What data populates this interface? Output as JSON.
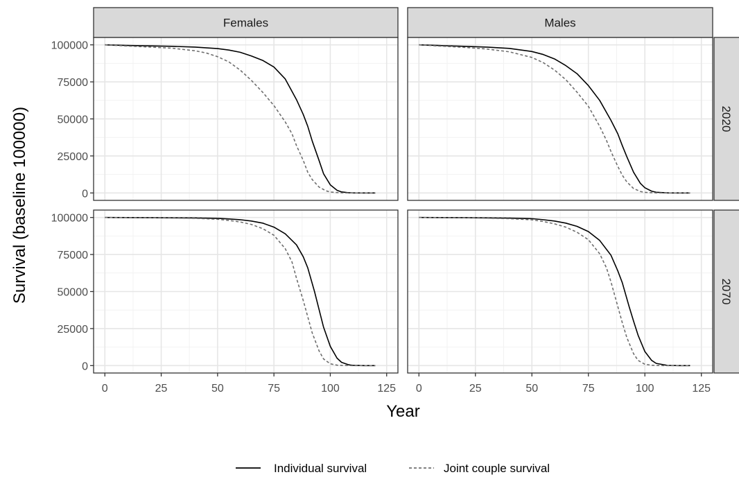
{
  "chart_data": {
    "type": "line",
    "facets": {
      "columns": [
        "Females",
        "Males"
      ],
      "rows": [
        "2020",
        "2070"
      ]
    },
    "xlabel": "Year",
    "ylabel": "Survival (baseline 100000)",
    "xlim": [
      0,
      125
    ],
    "ylim": [
      0,
      100000
    ],
    "x_ticks": [
      0,
      25,
      50,
      75,
      100,
      125
    ],
    "y_ticks": [
      0,
      25000,
      50000,
      75000,
      100000
    ],
    "y_tick_labels": [
      "0",
      "25000",
      "50000",
      "75000",
      "100000"
    ],
    "grid": true,
    "legend_position": "bottom",
    "series_styles": {
      "Individual survival": {
        "color": "#000000",
        "dash": "solid"
      },
      "Joint couple survival": {
        "color": "#6e6e6e",
        "dash": "dashed"
      }
    },
    "panels": [
      {
        "column": "Females",
        "row": "2020",
        "series": [
          {
            "name": "Individual survival",
            "x": [
              0,
              10,
              20,
              30,
              40,
              50,
              55,
              60,
              65,
              70,
              75,
              80,
              85,
              88,
              90,
              92,
              95,
              97,
              100,
              103,
              105,
              108,
              110,
              115,
              120
            ],
            "y": [
              100000,
              99600,
              99300,
              99000,
              98500,
              97500,
              96500,
              95000,
              92500,
              89500,
              85000,
              77000,
              63000,
              53000,
              45000,
              35000,
              22000,
              13000,
              5500,
              1800,
              700,
              200,
              80,
              10,
              0
            ]
          },
          {
            "name": "Joint couple survival",
            "x": [
              0,
              10,
              20,
              30,
              40,
              45,
              50,
              55,
              60,
              65,
              70,
              75,
              80,
              83,
              85,
              88,
              90,
              92,
              95,
              98,
              100,
              105,
              110,
              120
            ],
            "y": [
              100000,
              99200,
              98500,
              97700,
              96000,
              94500,
              92000,
              88500,
              83000,
              76000,
              68000,
              59000,
              48000,
              40000,
              32000,
              22000,
              14000,
              9000,
              4000,
              1500,
              600,
              100,
              20,
              0
            ]
          }
        ]
      },
      {
        "column": "Males",
        "row": "2020",
        "series": [
          {
            "name": "Individual survival",
            "x": [
              0,
              10,
              20,
              30,
              40,
              50,
              55,
              60,
              65,
              70,
              75,
              80,
              85,
              88,
              90,
              92,
              95,
              98,
              100,
              103,
              105,
              110,
              115,
              120
            ],
            "y": [
              100000,
              99500,
              99000,
              98500,
              97600,
              95500,
              93500,
              90500,
              86000,
              80500,
              72500,
              62500,
              49000,
              40000,
              32000,
              24500,
              14000,
              6500,
              3500,
              1200,
              500,
              80,
              10,
              0
            ]
          },
          {
            "name": "Joint couple survival",
            "x": [
              0,
              10,
              20,
              30,
              40,
              50,
              55,
              60,
              65,
              70,
              75,
              80,
              83,
              85,
              88,
              90,
              92,
              95,
              98,
              100,
              105,
              110,
              120
            ],
            "y": [
              100000,
              99100,
              98300,
              97200,
              95300,
              91500,
              88000,
              83000,
              76500,
              68000,
              58500,
              45000,
              35500,
              28000,
              18000,
              12000,
              7500,
              3000,
              1000,
              400,
              60,
              10,
              0
            ]
          }
        ]
      },
      {
        "column": "Females",
        "row": "2070",
        "series": [
          {
            "name": "Individual survival",
            "x": [
              0,
              20,
              40,
              50,
              55,
              60,
              65,
              70,
              75,
              80,
              85,
              88,
              90,
              93,
              95,
              97,
              100,
              103,
              105,
              108,
              110,
              115,
              120
            ],
            "y": [
              100000,
              99900,
              99700,
              99400,
              99000,
              98500,
              97600,
              96200,
              93500,
              89000,
              81500,
              73500,
              66000,
              50000,
              38000,
              26000,
              13000,
              5000,
              2200,
              600,
              200,
              20,
              0
            ]
          },
          {
            "name": "Joint couple survival",
            "x": [
              0,
              20,
              40,
              50,
              55,
              60,
              65,
              70,
              75,
              80,
              83,
              85,
              88,
              90,
              92,
              95,
              97,
              100,
              103,
              105,
              110,
              120
            ],
            "y": [
              100000,
              99800,
              99400,
              98800,
              98000,
              97000,
              95300,
              92500,
              88000,
              79000,
              70000,
              59000,
              44000,
              33000,
              22000,
              10000,
              4500,
              1200,
              300,
              100,
              10,
              0
            ]
          }
        ]
      },
      {
        "column": "Males",
        "row": "2070",
        "series": [
          {
            "name": "Individual survival",
            "x": [
              0,
              20,
              40,
              50,
              55,
              60,
              65,
              70,
              75,
              80,
              85,
              88,
              90,
              93,
              95,
              97,
              100,
              103,
              105,
              110,
              115,
              120
            ],
            "y": [
              100000,
              99900,
              99600,
              99200,
              98500,
              97600,
              96200,
              94000,
              90500,
              84500,
              74500,
              64000,
              56000,
              40000,
              30000,
              20500,
              9500,
              3500,
              1500,
              150,
              10,
              0
            ]
          },
          {
            "name": "Joint couple survival",
            "x": [
              0,
              20,
              40,
              50,
              55,
              60,
              65,
              70,
              75,
              80,
              83,
              85,
              88,
              90,
              92,
              95,
              97,
              100,
              103,
              105,
              110,
              120
            ],
            "y": [
              100000,
              99800,
              99200,
              98400,
              97300,
              95700,
              93500,
              90000,
              85000,
              75500,
              66000,
              56500,
              40000,
              29000,
              19000,
              8000,
              3500,
              900,
              250,
              80,
              5,
              0
            ]
          }
        ]
      }
    ]
  }
}
